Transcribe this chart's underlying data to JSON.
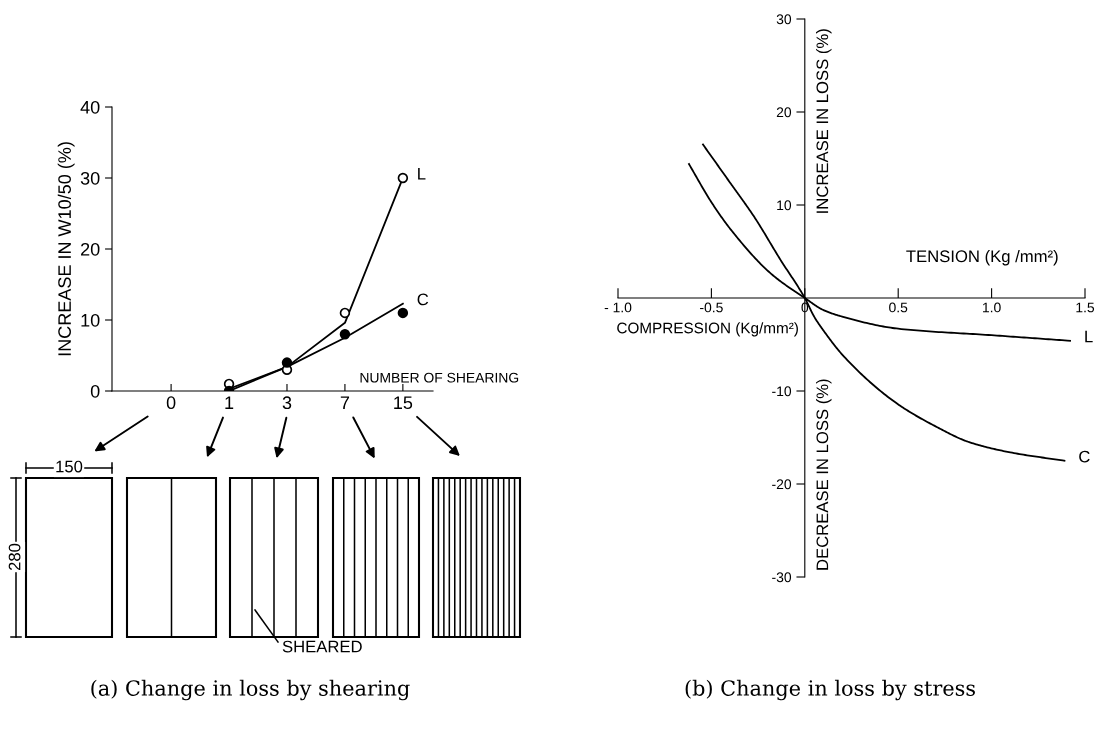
{
  "chart_data": [
    {
      "type": "line",
      "title": "(a) Change in loss by shearing",
      "xlabel": "NUMBER OF SHEARING",
      "ylabel": "INCREASE IN W10/50 (%)",
      "categories": [
        "0",
        "1",
        "3",
        "7",
        "15"
      ],
      "series": [
        {
          "name": "L",
          "type": "line",
          "color": "#000000",
          "marker": "none",
          "values": [
            null,
            0.3,
            3.4,
            9.6,
            30
          ]
        },
        {
          "name": "C",
          "type": "line",
          "color": "#000000",
          "marker": "none",
          "values": [
            null,
            0,
            3.4,
            7.5,
            12.3
          ]
        },
        {
          "type": "scatter",
          "color": "#ffffff",
          "marker": "circle",
          "values": [
            null,
            1,
            3,
            11,
            30
          ]
        },
        {
          "type": "scatter",
          "color": "#000000",
          "marker": "circle",
          "values": [
            null,
            0,
            4,
            8,
            11
          ]
        }
      ],
      "ylim": [
        0,
        40
      ],
      "yticks": [
        0,
        10,
        20,
        30,
        40
      ],
      "grid": false,
      "legend": false,
      "annotations": [
        "150",
        "280",
        "SHEARED"
      ]
    },
    {
      "type": "line",
      "title": "(b) Change in loss by stress",
      "xlabel": "TENSION (Kg /mm²)",
      "ylabel": "INCREASE IN LOSS (%)",
      "series": [
        {
          "name": "L",
          "color": "#000000",
          "x": [
            -0.62,
            -0.5,
            -0.39,
            -0.18,
            0,
            0.1,
            0.2,
            0.5,
            1.0,
            1.42
          ],
          "values": [
            14.4,
            10.3,
            7.2,
            2.6,
            0,
            -1.3,
            -2.0,
            -3.3,
            -4.0,
            -4.6
          ]
        },
        {
          "name": "C",
          "color": "#000000",
          "x": [
            -0.545,
            -0.4,
            -0.27,
            -0.13,
            0,
            0.05,
            0.1,
            0.21,
            0.49,
            0.7,
            0.88,
            1.1,
            1.39
          ],
          "values": [
            16.5,
            12.4,
            8.7,
            4.1,
            0,
            -2.0,
            -3.5,
            -6.3,
            -11.3,
            -13.8,
            -15.5,
            -16.6,
            -17.5
          ]
        }
      ],
      "xlim": [
        -1.0,
        1.5
      ],
      "xticks": [
        {
          "value": -1.0,
          "label": "- 1.0"
        },
        -0.5,
        0,
        0.5,
        {
          "value": 1.0,
          "label": "1.0"
        },
        {
          "value": 1.5,
          "label": "1.5"
        }
      ],
      "ylim": [
        -30,
        30
      ],
      "yticks": [
        -30,
        -20,
        -10,
        10,
        20,
        30
      ],
      "grid": false,
      "legend": false,
      "marker": "none",
      "annotations": [
        "COMPRESSION (Kg/mm²)",
        "DECREASE IN LOSS (%)"
      ]
    }
  ]
}
